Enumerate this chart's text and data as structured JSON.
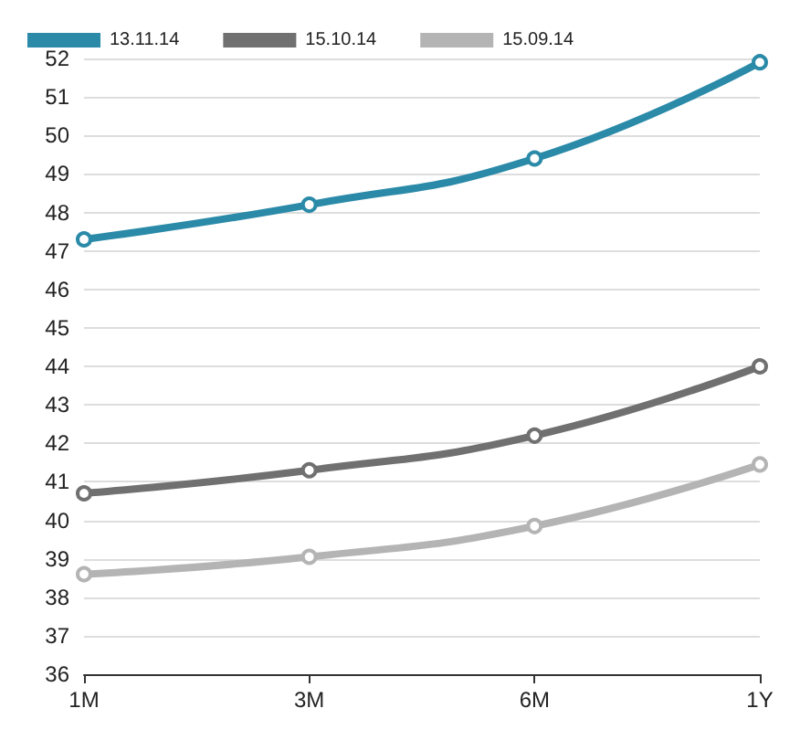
{
  "chart_data": {
    "type": "line",
    "categories": [
      "1M",
      "3M",
      "6M",
      "1Y"
    ],
    "series": [
      {
        "name": "13.11.14",
        "color": "#2a8aa8",
        "values": [
          47.3,
          48.2,
          49.4,
          51.9
        ]
      },
      {
        "name": "15.10.14",
        "color": "#707070",
        "values": [
          40.7,
          41.3,
          42.2,
          44.0
        ]
      },
      {
        "name": "15.09.14",
        "color": "#b4b4b4",
        "values": [
          38.6,
          39.05,
          39.85,
          41.45
        ]
      }
    ],
    "ylim": [
      36,
      52
    ],
    "yticks": [
      36,
      37,
      38,
      39,
      40,
      41,
      42,
      43,
      44,
      45,
      46,
      47,
      48,
      49,
      50,
      51,
      52
    ],
    "grid": "y",
    "legend": "top left",
    "marker": "circle",
    "line_style": "solid"
  }
}
